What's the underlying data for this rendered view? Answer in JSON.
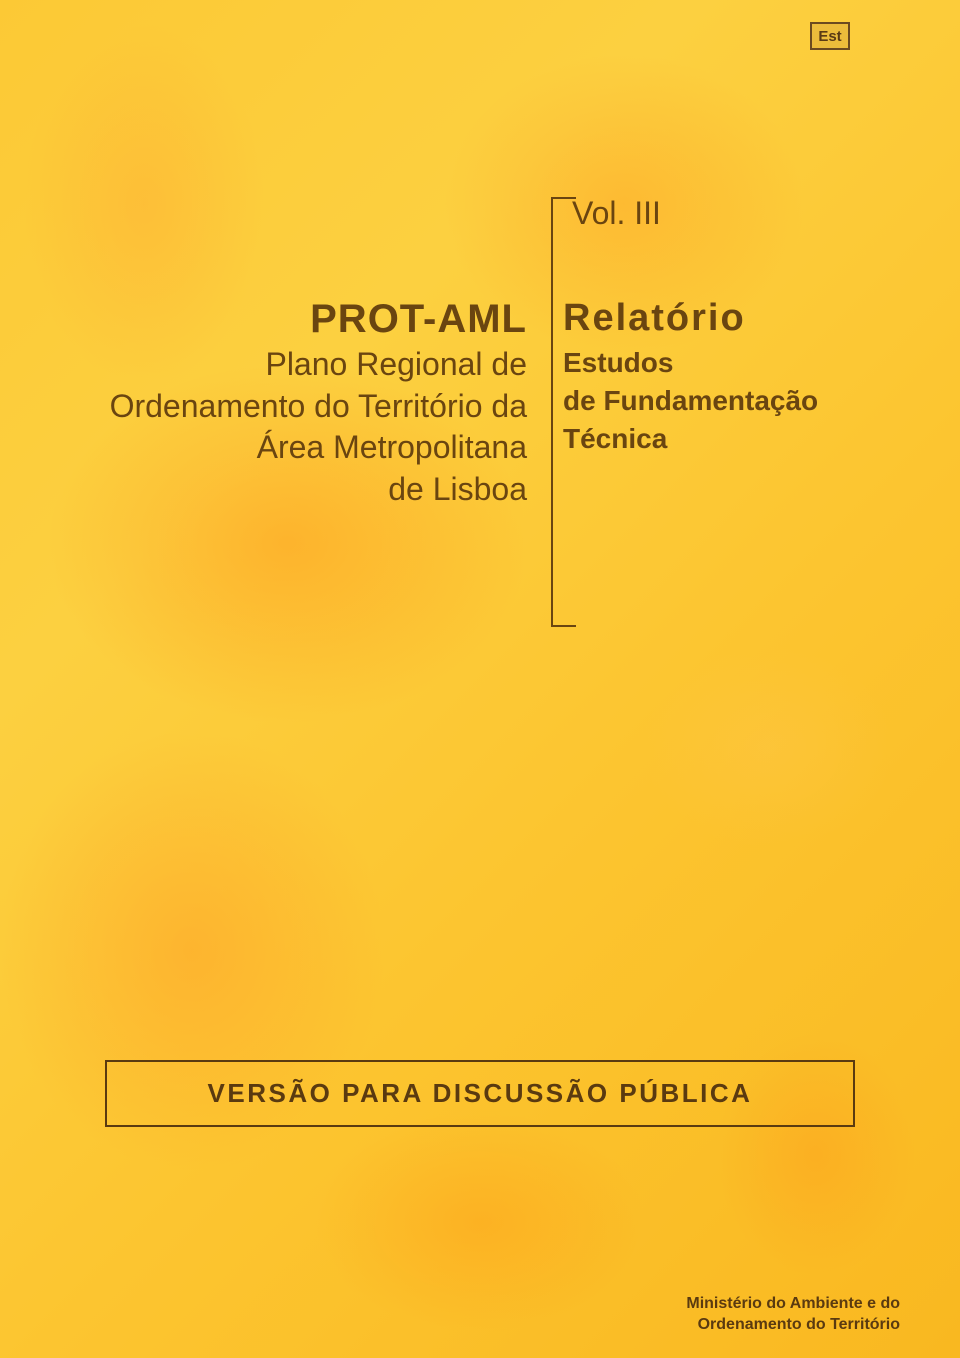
{
  "logo": {
    "text": "Est"
  },
  "volume": "Vol. III",
  "leftColumn": {
    "acronym": "PROT-AML",
    "line1": "Plano Regional de",
    "line2": "Ordenamento do Território da",
    "line3": "Área Metropolitana",
    "line4": "de Lisboa"
  },
  "rightColumn": {
    "title": "Relatório",
    "line1": "Estudos",
    "line2": "de Fundamentação",
    "line3": "Técnica"
  },
  "versionBox": "VERSÃO PARA DISCUSSÃO PÚBLICA",
  "footer": {
    "line1": "Ministério do Ambiente e do",
    "line2": "Ordenamento do Território"
  },
  "colors": {
    "text": "#6a4510",
    "darkText": "#5a3a10",
    "bgGradientStart": "#fcc935",
    "bgGradientEnd": "#f9b820"
  }
}
